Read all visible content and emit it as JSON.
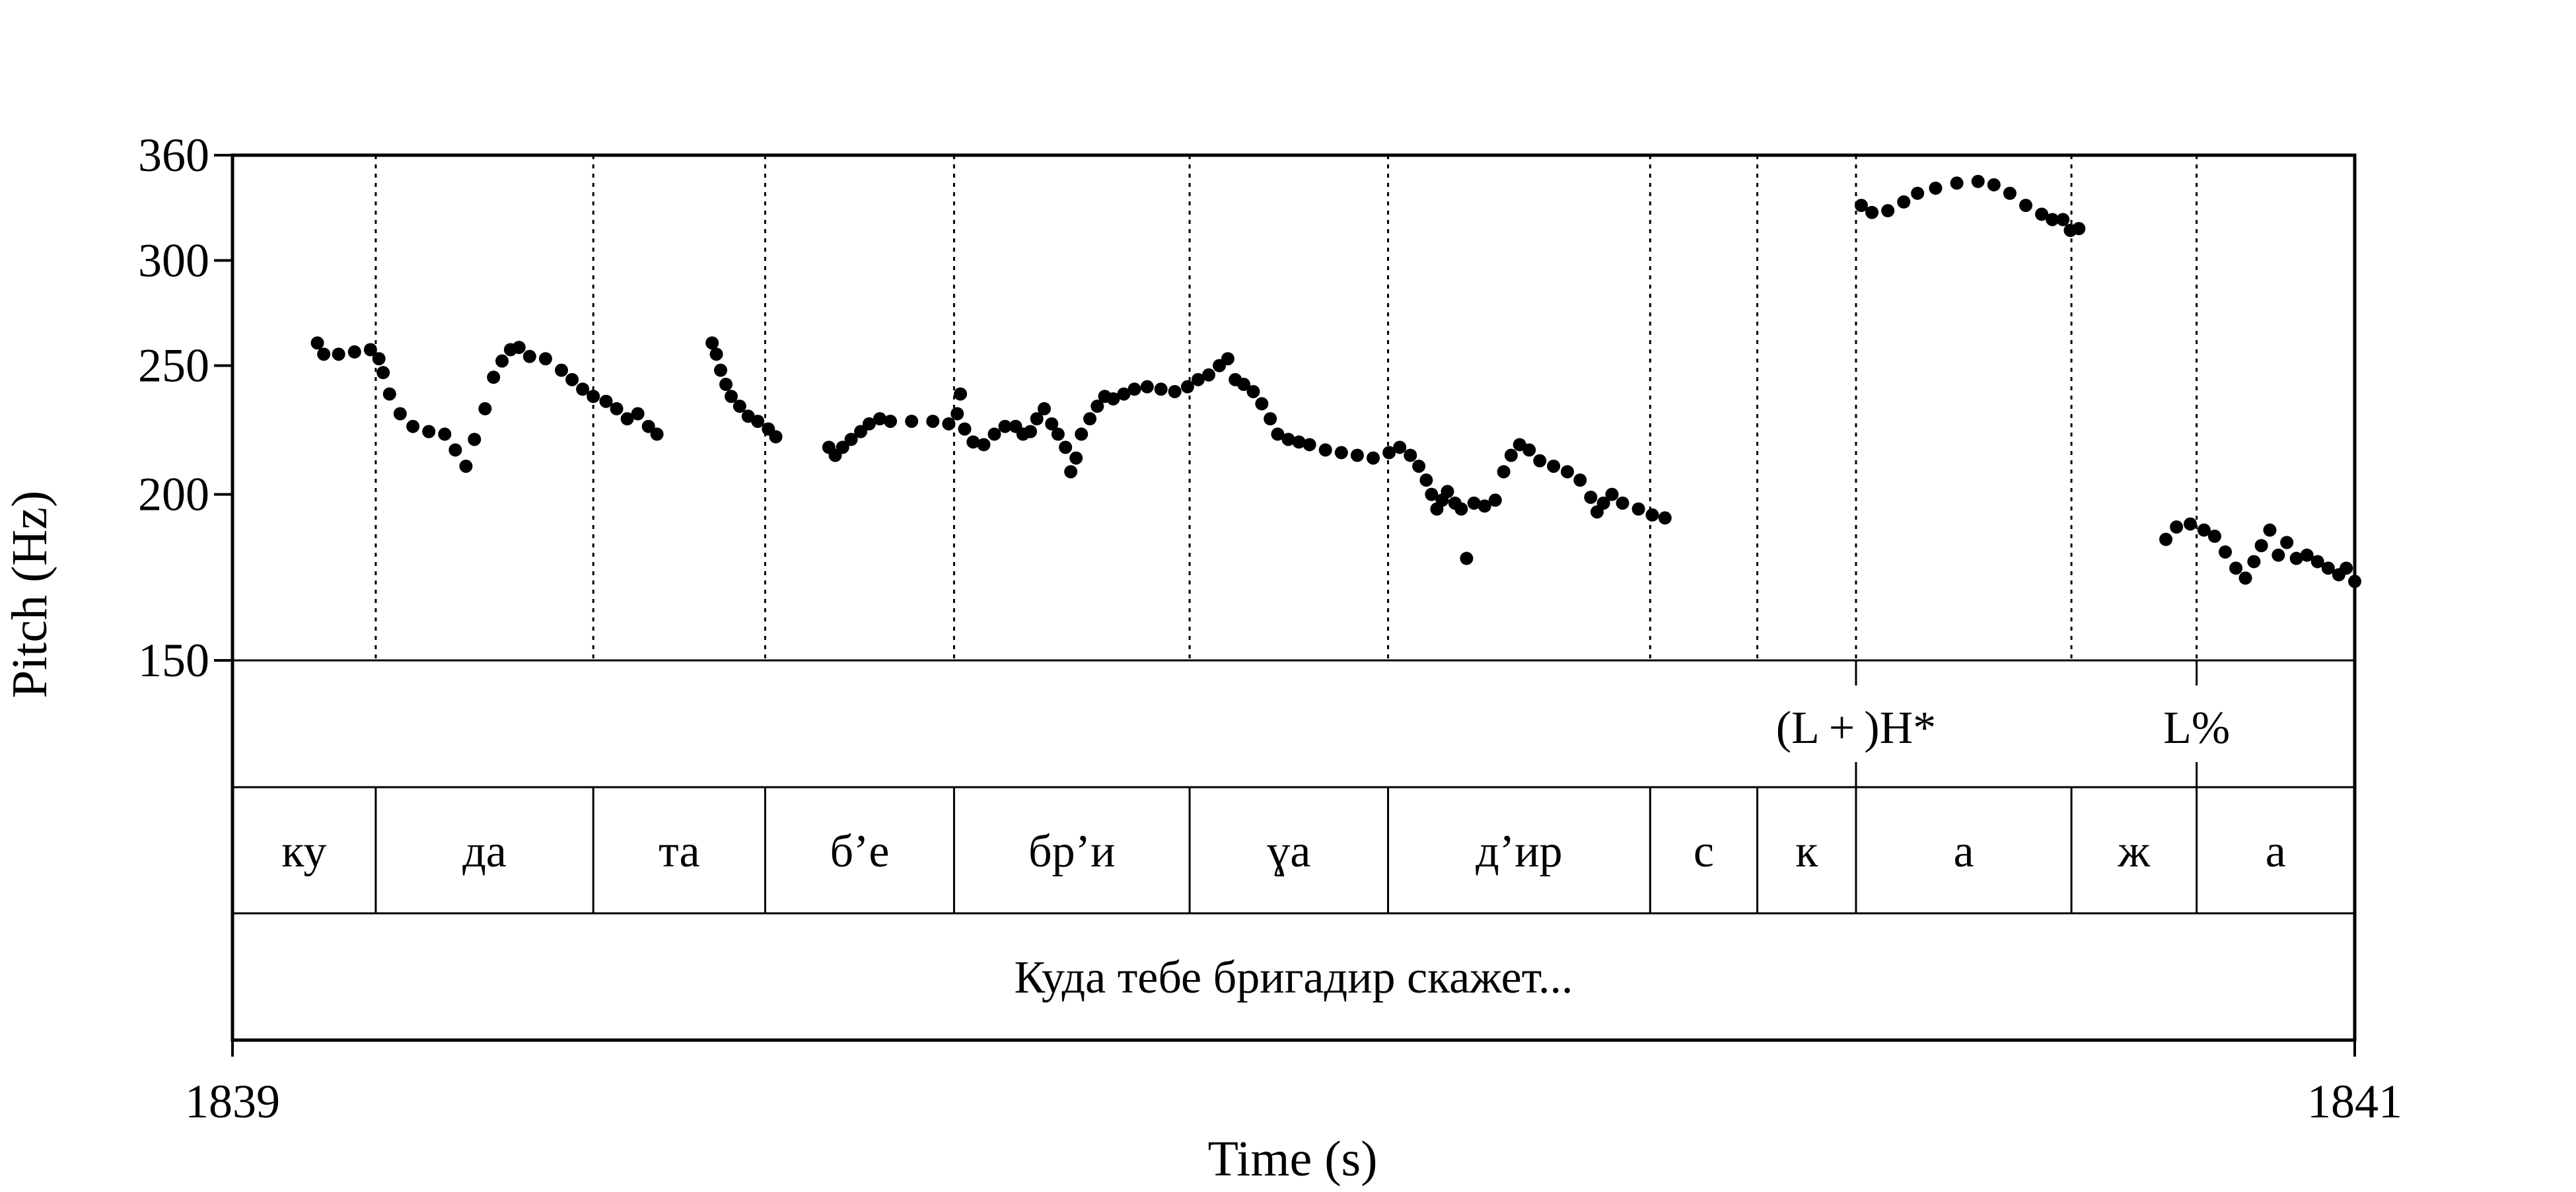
{
  "chart_data": {
    "type": "scatter",
    "xlabel": "Time (s)",
    "ylabel": "Pitch (Hz)",
    "xlim": [
      1839,
      1841
    ],
    "ylim": [
      150,
      360
    ],
    "y_scale": "log",
    "x_ticks": [
      "1839",
      "1841"
    ],
    "y_ticks": [
      150,
      200,
      250,
      300,
      360
    ],
    "grid": false,
    "legend": "none",
    "marker_color": "#000000",
    "boundaries": [
      1839.135,
      1839.34,
      1839.502,
      1839.68,
      1839.902,
      1840.089,
      1840.336,
      1840.437,
      1840.53,
      1840.733,
      1840.851
    ],
    "tones": [
      {
        "label": "(L + )H*",
        "time": 1840.53
      },
      {
        "label": "L%",
        "time": 1840.851
      }
    ],
    "syllables": [
      {
        "label": "ку",
        "start": 1839.0,
        "end": 1839.135
      },
      {
        "label": "да",
        "start": 1839.135,
        "end": 1839.34
      },
      {
        "label": "та",
        "start": 1839.34,
        "end": 1839.502
      },
      {
        "label": "б’е",
        "start": 1839.502,
        "end": 1839.68
      },
      {
        "label": "бр’и",
        "start": 1839.68,
        "end": 1839.902
      },
      {
        "label": "ɣа",
        "start": 1839.902,
        "end": 1840.089
      },
      {
        "label": "д’ир",
        "start": 1840.089,
        "end": 1840.336
      },
      {
        "label": "с",
        "start": 1840.336,
        "end": 1840.437
      },
      {
        "label": "к",
        "start": 1840.437,
        "end": 1840.53
      },
      {
        "label": "а",
        "start": 1840.53,
        "end": 1840.733
      },
      {
        "label": "ж",
        "start": 1840.733,
        "end": 1840.851
      },
      {
        "label": "а",
        "start": 1840.851,
        "end": 1841.0
      }
    ],
    "sentence": "Куда тебе бригадир скажет...",
    "series": [
      {
        "points": [
          [
            1839.08,
            260
          ],
          [
            1839.086,
            255
          ],
          [
            1839.1,
            255
          ],
          [
            1839.115,
            256
          ],
          [
            1839.13,
            257
          ],
          [
            1839.138,
            253
          ],
          [
            1839.142,
            247
          ],
          [
            1839.148,
            238
          ],
          [
            1839.158,
            230
          ],
          [
            1839.17,
            225
          ],
          [
            1839.185,
            223
          ],
          [
            1839.2,
            222
          ],
          [
            1839.21,
            216
          ],
          [
            1839.22,
            210
          ],
          [
            1839.228,
            220
          ],
          [
            1839.238,
            232
          ],
          [
            1839.246,
            245
          ],
          [
            1839.254,
            252
          ],
          [
            1839.262,
            257
          ],
          [
            1839.27,
            258
          ],
          [
            1839.28,
            254
          ],
          [
            1839.295,
            253
          ],
          [
            1839.31,
            248
          ],
          [
            1839.32,
            244
          ],
          [
            1839.33,
            240
          ],
          [
            1839.34,
            237
          ],
          [
            1839.352,
            235
          ],
          [
            1839.362,
            232
          ],
          [
            1839.372,
            228
          ],
          [
            1839.382,
            230
          ],
          [
            1839.392,
            225
          ],
          [
            1839.4,
            222
          ],
          [
            1839.452,
            260
          ],
          [
            1839.456,
            255
          ],
          [
            1839.46,
            248
          ],
          [
            1839.465,
            242
          ],
          [
            1839.47,
            237
          ],
          [
            1839.478,
            233
          ],
          [
            1839.486,
            229
          ],
          [
            1839.495,
            227
          ],
          [
            1839.505,
            224
          ],
          [
            1839.512,
            221
          ],
          [
            1839.562,
            217
          ],
          [
            1839.568,
            214
          ],
          [
            1839.575,
            217
          ],
          [
            1839.583,
            220
          ],
          [
            1839.592,
            223
          ],
          [
            1839.6,
            226
          ],
          [
            1839.61,
            228
          ],
          [
            1839.62,
            227
          ],
          [
            1839.64,
            227
          ],
          [
            1839.66,
            227
          ],
          [
            1839.675,
            226
          ],
          [
            1839.683,
            230
          ],
          [
            1839.686,
            238
          ],
          [
            1839.69,
            224
          ],
          [
            1839.698,
            219
          ],
          [
            1839.708,
            218
          ],
          [
            1839.718,
            222
          ],
          [
            1839.728,
            225
          ],
          [
            1839.738,
            225
          ],
          [
            1839.745,
            222
          ],
          [
            1839.752,
            223
          ],
          [
            1839.758,
            228
          ],
          [
            1839.765,
            232
          ],
          [
            1839.772,
            226
          ],
          [
            1839.778,
            222
          ],
          [
            1839.785,
            217
          ],
          [
            1839.79,
            208
          ],
          [
            1839.795,
            213
          ],
          [
            1839.8,
            222
          ],
          [
            1839.808,
            228
          ],
          [
            1839.815,
            233
          ],
          [
            1839.822,
            237
          ],
          [
            1839.83,
            236
          ],
          [
            1839.84,
            238
          ],
          [
            1839.85,
            240
          ],
          [
            1839.862,
            241
          ],
          [
            1839.875,
            240
          ],
          [
            1839.888,
            239
          ],
          [
            1839.9,
            241
          ],
          [
            1839.91,
            244
          ],
          [
            1839.92,
            246
          ],
          [
            1839.93,
            250
          ],
          [
            1839.938,
            253
          ],
          [
            1839.945,
            244
          ],
          [
            1839.953,
            242
          ],
          [
            1839.962,
            239
          ],
          [
            1839.97,
            234
          ],
          [
            1839.978,
            228
          ],
          [
            1839.985,
            222
          ],
          [
            1839.995,
            220
          ],
          [
            1840.005,
            219
          ],
          [
            1840.015,
            218
          ],
          [
            1840.03,
            216
          ],
          [
            1840.045,
            215
          ],
          [
            1840.06,
            214
          ],
          [
            1840.075,
            213
          ],
          [
            1840.09,
            215
          ],
          [
            1840.1,
            217
          ],
          [
            1840.11,
            214
          ],
          [
            1840.118,
            210
          ],
          [
            1840.125,
            205
          ],
          [
            1840.13,
            200
          ],
          [
            1840.135,
            195
          ],
          [
            1840.14,
            198
          ],
          [
            1840.145,
            201
          ],
          [
            1840.152,
            197
          ],
          [
            1840.158,
            195
          ],
          [
            1840.163,
            179
          ],
          [
            1840.17,
            197
          ],
          [
            1840.18,
            196
          ],
          [
            1840.19,
            198
          ],
          [
            1840.198,
            208
          ],
          [
            1840.205,
            214
          ],
          [
            1840.213,
            218
          ],
          [
            1840.222,
            216
          ],
          [
            1840.232,
            212
          ],
          [
            1840.245,
            210
          ],
          [
            1840.258,
            208
          ],
          [
            1840.27,
            205
          ],
          [
            1840.28,
            199
          ],
          [
            1840.286,
            194
          ],
          [
            1840.292,
            197
          ],
          [
            1840.3,
            200
          ],
          [
            1840.31,
            197
          ],
          [
            1840.325,
            195
          ],
          [
            1840.338,
            193
          ],
          [
            1840.35,
            192
          ],
          [
            1840.535,
            330
          ],
          [
            1840.545,
            326
          ],
          [
            1840.56,
            327
          ],
          [
            1840.575,
            332
          ],
          [
            1840.588,
            337
          ],
          [
            1840.605,
            340
          ],
          [
            1840.625,
            343
          ],
          [
            1840.645,
            344
          ],
          [
            1840.66,
            342
          ],
          [
            1840.675,
            337
          ],
          [
            1840.69,
            330
          ],
          [
            1840.705,
            325
          ],
          [
            1840.715,
            322
          ],
          [
            1840.725,
            322
          ],
          [
            1840.732,
            316
          ],
          [
            1840.74,
            317
          ],
          [
            1840.822,
            185
          ],
          [
            1840.832,
            189
          ],
          [
            1840.845,
            190
          ],
          [
            1840.858,
            188
          ],
          [
            1840.868,
            186
          ],
          [
            1840.878,
            181
          ],
          [
            1840.888,
            176
          ],
          [
            1840.897,
            173
          ],
          [
            1840.905,
            178
          ],
          [
            1840.912,
            183
          ],
          [
            1840.92,
            188
          ],
          [
            1840.928,
            180
          ],
          [
            1840.936,
            184
          ],
          [
            1840.945,
            179
          ],
          [
            1840.955,
            180
          ],
          [
            1840.965,
            178
          ],
          [
            1840.975,
            176
          ],
          [
            1840.985,
            174
          ],
          [
            1840.992,
            176
          ],
          [
            1841.0,
            172
          ]
        ]
      }
    ]
  }
}
